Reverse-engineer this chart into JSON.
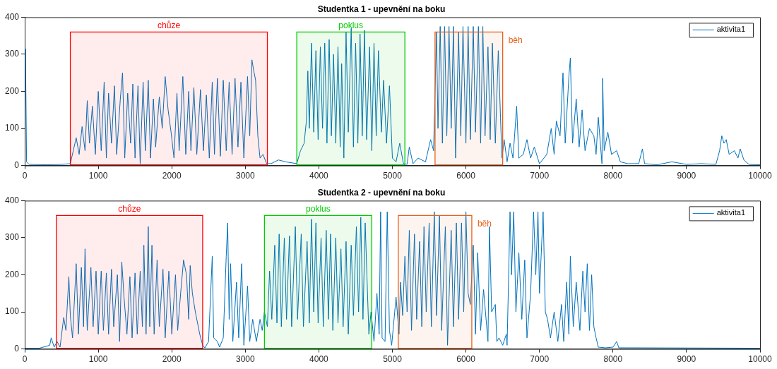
{
  "chart_data": [
    {
      "type": "line",
      "title": "Studentka 1 - upevnění na boku",
      "legend": "top right",
      "grid": false,
      "marker": "none",
      "line_style": "solid",
      "xlim": [
        0,
        10000
      ],
      "xticks": [
        0,
        1000,
        2000,
        3000,
        4000,
        5000,
        6000,
        7000,
        8000,
        9000,
        10000
      ],
      "ylim": [
        0,
        400
      ],
      "yticks": [
        0,
        100,
        200,
        300,
        400
      ],
      "bands": [
        {
          "axis": "x",
          "from": 620,
          "to": 3300,
          "label": "chůze",
          "color": "#ff0000"
        },
        {
          "axis": "x",
          "from": 3700,
          "to": 5170,
          "label": "poklus",
          "color": "#00cc00"
        },
        {
          "axis": "x",
          "from": 5580,
          "to": 6500,
          "label": "běh",
          "color": "#e8601c"
        }
      ],
      "x": [
        0,
        10,
        25,
        60,
        300,
        500,
        620,
        660,
        700,
        740,
        780,
        820,
        850,
        880,
        920,
        960,
        1000,
        1040,
        1080,
        1110,
        1140,
        1180,
        1220,
        1250,
        1300,
        1330,
        1360,
        1400,
        1440,
        1470,
        1500,
        1540,
        1570,
        1610,
        1640,
        1680,
        1710,
        1750,
        1780,
        1830,
        1870,
        1910,
        1950,
        1990,
        2030,
        2070,
        2100,
        2150,
        2190,
        2230,
        2260,
        2300,
        2340,
        2390,
        2430,
        2470,
        2510,
        2550,
        2580,
        2620,
        2660,
        2700,
        2740,
        2780,
        2820,
        2860,
        2900,
        2940,
        2980,
        3030,
        3060,
        3090,
        3110,
        3140,
        3170,
        3200,
        3240,
        3290,
        3350,
        3450,
        3550,
        3700,
        3750,
        3800,
        3830,
        3850,
        3870,
        3900,
        3930,
        3960,
        3990,
        4020,
        4050,
        4080,
        4110,
        4140,
        4170,
        4200,
        4230,
        4260,
        4290,
        4310,
        4340,
        4370,
        4400,
        4440,
        4470,
        4500,
        4530,
        4560,
        4590,
        4620,
        4650,
        4690,
        4720,
        4750,
        4780,
        4810,
        4850,
        4880,
        4920,
        4960,
        5000,
        5050,
        5100,
        5150,
        5200,
        5230,
        5280,
        5350,
        5450,
        5520,
        5560,
        5600,
        5620,
        5650,
        5680,
        5710,
        5740,
        5770,
        5800,
        5830,
        5860,
        5900,
        5930,
        5960,
        6000,
        6030,
        6060,
        6100,
        6130,
        6170,
        6200,
        6230,
        6260,
        6300,
        6330,
        6360,
        6400,
        6440,
        6470,
        6490,
        6520,
        6560,
        6600,
        6640,
        6690,
        6720,
        6780,
        6830,
        6880,
        6930,
        7000,
        7100,
        7160,
        7200,
        7230,
        7280,
        7320,
        7350,
        7400,
        7420,
        7450,
        7500,
        7540,
        7580,
        7620,
        7680,
        7740,
        7770,
        7800,
        7850,
        7860,
        7880,
        7930,
        7980,
        8050,
        8100,
        8200,
        8350,
        8400,
        8430,
        8600,
        8800,
        9000,
        9200,
        9400,
        9450,
        9480,
        9510,
        9540,
        9580,
        9650,
        9700,
        9730,
        9780,
        9850,
        10000
      ],
      "series": [
        {
          "name": "aktivita1",
          "color": "#0072bd",
          "values": [
            0,
            315,
            10,
            3,
            2,
            3,
            5,
            40,
            75,
            30,
            105,
            40,
            175,
            60,
            160,
            30,
            200,
            40,
            225,
            20,
            195,
            60,
            215,
            30,
            180,
            250,
            20,
            195,
            60,
            220,
            20,
            215,
            5,
            225,
            40,
            230,
            20,
            180,
            50,
            185,
            100,
            240,
            150,
            90,
            20,
            195,
            40,
            240,
            30,
            200,
            40,
            210,
            30,
            205,
            40,
            190,
            20,
            225,
            30,
            235,
            25,
            230,
            40,
            225,
            30,
            235,
            50,
            225,
            20,
            240,
            80,
            285,
            260,
            230,
            80,
            20,
            30,
            5,
            5,
            15,
            10,
            5,
            40,
            60,
            120,
            255,
            100,
            330,
            90,
            310,
            70,
            320,
            100,
            330,
            60,
            340,
            80,
            300,
            60,
            320,
            50,
            275,
            20,
            360,
            90,
            370,
            50,
            330,
            60,
            355,
            80,
            365,
            70,
            320,
            40,
            330,
            80,
            310,
            90,
            230,
            60,
            215,
            20,
            10,
            60,
            5,
            3,
            50,
            5,
            20,
            10,
            70,
            40,
            360,
            100,
            375,
            60,
            375,
            80,
            375,
            100,
            375,
            20,
            360,
            80,
            375,
            60,
            375,
            70,
            375,
            90,
            375,
            60,
            375,
            80,
            320,
            70,
            330,
            60,
            310,
            130,
            20,
            70,
            10,
            60,
            20,
            160,
            20,
            30,
            70,
            20,
            50,
            5,
            30,
            100,
            30,
            120,
            80,
            250,
            60,
            240,
            290,
            60,
            180,
            50,
            150,
            40,
            100,
            80,
            30,
            130,
            5,
            235,
            40,
            90,
            30,
            40,
            10,
            5,
            5,
            45,
            5,
            2,
            10,
            3,
            5,
            3,
            40,
            80,
            60,
            70,
            30,
            40,
            20,
            45,
            15,
            3,
            2
          ]
        }
      ]
    },
    {
      "type": "line",
      "title": "Studentka 2 - upevnění na boku",
      "legend": "top right",
      "grid": false,
      "marker": "none",
      "line_style": "solid",
      "xlim": [
        0,
        10000
      ],
      "xticks": [
        0,
        1000,
        2000,
        3000,
        4000,
        5000,
        6000,
        7000,
        8000,
        9000,
        10000
      ],
      "ylim": [
        0,
        400
      ],
      "yticks": [
        0,
        100,
        200,
        300,
        400
      ],
      "bands": [
        {
          "axis": "x",
          "from": 430,
          "to": 2420,
          "label": "chůze",
          "color": "#ff0000"
        },
        {
          "axis": "x",
          "from": 3260,
          "to": 4720,
          "label": "poklus",
          "color": "#00cc00"
        },
        {
          "axis": "x",
          "from": 5080,
          "to": 6080,
          "label": "běh",
          "color": "#e8601c"
        }
      ],
      "x": [
        0,
        200,
        340,
        360,
        400,
        440,
        480,
        530,
        560,
        600,
        620,
        650,
        700,
        730,
        770,
        800,
        820,
        850,
        900,
        930,
        970,
        1000,
        1040,
        1070,
        1110,
        1140,
        1180,
        1210,
        1260,
        1290,
        1320,
        1350,
        1390,
        1430,
        1460,
        1500,
        1530,
        1570,
        1600,
        1620,
        1650,
        1680,
        1700,
        1730,
        1760,
        1800,
        1830,
        1880,
        1910,
        1960,
        2000,
        2050,
        2080,
        2120,
        2160,
        2200,
        2230,
        2250,
        2280,
        2320,
        2380,
        2420,
        2450,
        2500,
        2550,
        2570,
        2620,
        2650,
        2700,
        2740,
        2760,
        2780,
        2800,
        2830,
        2880,
        2910,
        2950,
        2980,
        3030,
        3060,
        3100,
        3150,
        3200,
        3230,
        3260,
        3300,
        3330,
        3360,
        3400,
        3430,
        3460,
        3490,
        3530,
        3560,
        3600,
        3630,
        3680,
        3710,
        3760,
        3790,
        3840,
        3870,
        3900,
        3930,
        3960,
        3990,
        4030,
        4060,
        4100,
        4130,
        4160,
        4190,
        4230,
        4260,
        4300,
        4330,
        4370,
        4400,
        4440,
        4470,
        4510,
        4540,
        4570,
        4600,
        4630,
        4680,
        4710,
        4750,
        4790,
        4820,
        4840,
        4860,
        4900,
        4930,
        4960,
        4990,
        5050,
        5090,
        5110,
        5140,
        5170,
        5200,
        5230,
        5260,
        5300,
        5330,
        5370,
        5400,
        5430,
        5460,
        5500,
        5530,
        5570,
        5600,
        5640,
        5670,
        5720,
        5750,
        5800,
        5830,
        5870,
        5900,
        5940,
        5970,
        6000,
        6030,
        6060,
        6100,
        6130,
        6160,
        6200,
        6240,
        6300,
        6320,
        6350,
        6400,
        6420,
        6450,
        6500,
        6550,
        6560,
        6600,
        6620,
        6650,
        6680,
        6720,
        6760,
        6800,
        6830,
        6880,
        6920,
        6950,
        6980,
        7000,
        7050,
        7080,
        7110,
        7150,
        7200,
        7250,
        7300,
        7330,
        7370,
        7400,
        7420,
        7460,
        7500,
        7550,
        7590,
        7620,
        7650,
        7680,
        7710,
        7740,
        7770,
        7800,
        7900,
        8000,
        8050,
        8080,
        8300,
        10000
      ],
      "series": [
        {
          "name": "aktivita1",
          "color": "#0072bd",
          "values": [
            2,
            2,
            10,
            30,
            5,
            20,
            5,
            85,
            50,
            195,
            90,
            30,
            230,
            40,
            220,
            60,
            270,
            50,
            220,
            60,
            210,
            40,
            210,
            50,
            205,
            40,
            215,
            60,
            200,
            20,
            235,
            140,
            40,
            195,
            30,
            205,
            40,
            210,
            60,
            280,
            40,
            330,
            60,
            280,
            40,
            240,
            60,
            215,
            30,
            210,
            40,
            200,
            50,
            150,
            240,
            200,
            80,
            225,
            150,
            100,
            40,
            10,
            3,
            20,
            250,
            30,
            20,
            5,
            30,
            250,
            340,
            80,
            230,
            20,
            180,
            30,
            230,
            10,
            170,
            20,
            80,
            20,
            80,
            50,
            100,
            60,
            210,
            80,
            280,
            70,
            310,
            60,
            300,
            80,
            305,
            60,
            330,
            80,
            310,
            60,
            290,
            70,
            350,
            100,
            340,
            70,
            300,
            60,
            320,
            80,
            310,
            50,
            300,
            70,
            270,
            60,
            290,
            40,
            280,
            90,
            330,
            100,
            355,
            80,
            340,
            40,
            100,
            20,
            150,
            40,
            370,
            30,
            20,
            370,
            50,
            10,
            140,
            40,
            180,
            90,
            250,
            100,
            320,
            50,
            310,
            80,
            290,
            60,
            330,
            100,
            340,
            60,
            370,
            90,
            360,
            50,
            330,
            10,
            320,
            60,
            340,
            80,
            340,
            100,
            370,
            150,
            120,
            280,
            40,
            260,
            50,
            160,
            20,
            330,
            100,
            120,
            20,
            30,
            10,
            40,
            10,
            370,
            200,
            370,
            100,
            260,
            80,
            240,
            30,
            150,
            370,
            200,
            370,
            150,
            370,
            100,
            80,
            30,
            100,
            20,
            120,
            20,
            180,
            40,
            250,
            60,
            180,
            50,
            210,
            100,
            230,
            50,
            200,
            60,
            30,
            5,
            3,
            5,
            20,
            3,
            3,
            2
          ]
        }
      ]
    }
  ]
}
